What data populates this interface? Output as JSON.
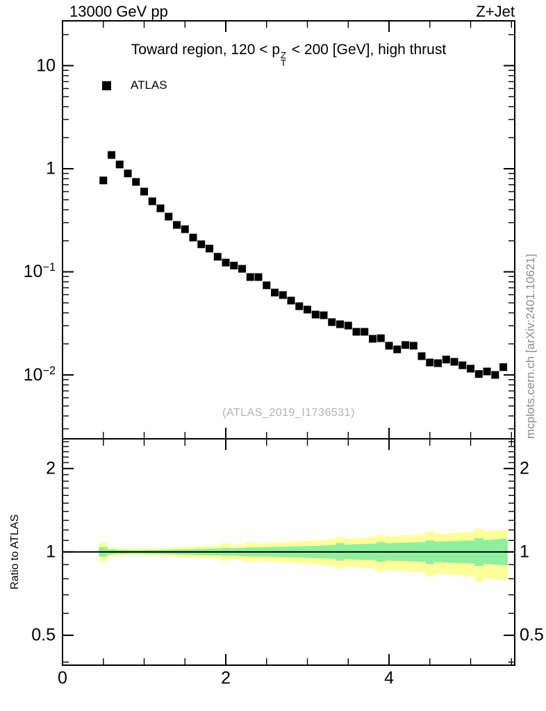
{
  "header": {
    "left": "13000 GeV pp",
    "right": "Z+Jet"
  },
  "main_panel": {
    "title": {
      "prefix": "Toward region, 120 < ",
      "symbol": "p",
      "sup": "Z",
      "sub": "T",
      "suffix": " < 200 [GeV], high thrust"
    },
    "legend": [
      {
        "label": "ATLAS",
        "marker": "filled-square",
        "color": "#000000"
      }
    ],
    "watermark": "(ATLAS_2019_I1736531)"
  },
  "side_caption": "mcplots.cern.ch [arXiv:2401.10621]",
  "chart_data": [
    {
      "id": "main",
      "type": "scatter",
      "title": "Toward region, 120 < pT(Z) < 200 [GeV], high thrust",
      "xlabel": "",
      "ylabel": "",
      "xscale": "linear",
      "yscale": "log",
      "xlim": [
        0,
        5.54
      ],
      "ylim": [
        0.0024,
        27.2
      ],
      "grid": false,
      "legend_position": "top-left-inside",
      "xticks": {
        "values": [
          0,
          2,
          4
        ],
        "labels": [
          "0",
          "2",
          "4"
        ],
        "minor_step": 0.5,
        "minor_max": 5.5
      },
      "ytick_labels": [
        {
          "v": 10,
          "base": "10",
          "exp": ""
        },
        {
          "v": 1,
          "base": "1",
          "exp": ""
        },
        {
          "v": 0.1,
          "base": "10",
          "exp": "−1"
        },
        {
          "v": 0.01,
          "base": "10",
          "exp": "−2"
        }
      ],
      "series": [
        {
          "name": "ATLAS",
          "marker": "filled-square",
          "color": "#000000",
          "x": [
            0.5,
            0.6,
            0.7,
            0.8,
            0.9,
            1.0,
            1.1,
            1.2,
            1.3,
            1.4,
            1.5,
            1.6,
            1.7,
            1.8,
            1.9,
            2.0,
            2.1,
            2.2,
            2.3,
            2.4,
            2.5,
            2.6,
            2.7,
            2.8,
            2.9,
            3.0,
            3.1,
            3.2,
            3.3,
            3.4,
            3.5,
            3.6,
            3.7,
            3.8,
            3.9,
            4.0,
            4.1,
            4.2,
            4.3,
            4.4,
            4.5,
            4.6,
            4.7,
            4.8,
            4.9,
            5.0,
            5.1,
            5.2,
            5.3,
            5.4
          ],
          "y": [
            0.77,
            1.36,
            1.1,
            0.9,
            0.745,
            0.6,
            0.483,
            0.413,
            0.343,
            0.285,
            0.259,
            0.215,
            0.185,
            0.168,
            0.14,
            0.123,
            0.115,
            0.107,
            0.089,
            0.089,
            0.074,
            0.063,
            0.0595,
            0.0526,
            0.0464,
            0.043,
            0.0385,
            0.0379,
            0.0325,
            0.031,
            0.0301,
            0.0262,
            0.0262,
            0.0224,
            0.0227,
            0.0192,
            0.0177,
            0.0195,
            0.0192,
            0.0152,
            0.0132,
            0.013,
            0.0141,
            0.0134,
            0.0124,
            0.0115,
            0.0102,
            0.0108,
            0.01,
            0.0119
          ]
        }
      ]
    },
    {
      "id": "ratio",
      "type": "band",
      "ylabel": "Ratio to ATLAS",
      "xscale": "linear",
      "yscale": "log",
      "xlim": [
        0,
        5.54
      ],
      "ylim": [
        0.39,
        2.56
      ],
      "reference_line": 1,
      "yticks": {
        "values": [
          2,
          1,
          0.5
        ],
        "labels": [
          "2",
          "1",
          "0.5"
        ],
        "minors": [
          0.4,
          0.6,
          0.7,
          0.8,
          0.9,
          1.1,
          1.2,
          1.3,
          1.4,
          1.5,
          1.6,
          1.7,
          1.8,
          1.9,
          2.1,
          2.2,
          2.3,
          2.4,
          2.5
        ]
      },
      "colors": {
        "inner": "#8ef09e",
        "outer": "#ffff99"
      },
      "bin_width": 0.1,
      "x": [
        0.5,
        0.6,
        0.7,
        0.8,
        0.9,
        1.0,
        1.1,
        1.2,
        1.3,
        1.4,
        1.5,
        1.6,
        1.7,
        1.8,
        1.9,
        2.0,
        2.1,
        2.2,
        2.3,
        2.4,
        2.5,
        2.6,
        2.7,
        2.8,
        2.9,
        3.0,
        3.1,
        3.2,
        3.3,
        3.4,
        3.5,
        3.6,
        3.7,
        3.8,
        3.9,
        4.0,
        4.1,
        4.2,
        4.3,
        4.4,
        4.5,
        4.6,
        4.7,
        4.8,
        4.9,
        5.0,
        5.1,
        5.2,
        5.3,
        5.4
      ],
      "inner_hi": [
        1.04,
        1.022,
        1.018,
        1.016,
        1.015,
        1.016,
        1.017,
        1.018,
        1.019,
        1.021,
        1.022,
        1.024,
        1.026,
        1.028,
        1.03,
        1.034,
        1.032,
        1.034,
        1.038,
        1.038,
        1.04,
        1.042,
        1.044,
        1.046,
        1.048,
        1.05,
        1.052,
        1.055,
        1.058,
        1.075,
        1.062,
        1.065,
        1.068,
        1.07,
        1.085,
        1.075,
        1.078,
        1.08,
        1.082,
        1.085,
        1.1,
        1.09,
        1.092,
        1.095,
        1.098,
        1.1,
        1.12,
        1.105,
        1.11,
        1.115
      ],
      "inner_lo": [
        0.962,
        0.98,
        0.984,
        0.985,
        0.986,
        0.985,
        0.984,
        0.983,
        0.982,
        0.98,
        0.978,
        0.977,
        0.975,
        0.973,
        0.971,
        0.968,
        0.969,
        0.967,
        0.963,
        0.964,
        0.962,
        0.96,
        0.958,
        0.956,
        0.954,
        0.952,
        0.95,
        0.948,
        0.945,
        0.93,
        0.941,
        0.938,
        0.936,
        0.934,
        0.92,
        0.93,
        0.928,
        0.926,
        0.924,
        0.922,
        0.905,
        0.918,
        0.915,
        0.912,
        0.91,
        0.908,
        0.89,
        0.903,
        0.9,
        0.895
      ],
      "outer_hi": [
        1.078,
        1.04,
        1.032,
        1.028,
        1.026,
        1.028,
        1.03,
        1.032,
        1.035,
        1.038,
        1.042,
        1.045,
        1.048,
        1.052,
        1.056,
        1.075,
        1.06,
        1.064,
        1.085,
        1.072,
        1.076,
        1.08,
        1.084,
        1.088,
        1.092,
        1.096,
        1.1,
        1.105,
        1.11,
        1.13,
        1.115,
        1.12,
        1.125,
        1.13,
        1.15,
        1.135,
        1.14,
        1.145,
        1.148,
        1.152,
        1.185,
        1.16,
        1.165,
        1.17,
        1.175,
        1.18,
        1.21,
        1.19,
        1.195,
        1.2
      ],
      "outer_lo": [
        0.925,
        0.96,
        0.968,
        0.972,
        0.974,
        0.972,
        0.97,
        0.968,
        0.964,
        0.96,
        0.957,
        0.953,
        0.95,
        0.946,
        0.942,
        0.93,
        0.938,
        0.934,
        0.918,
        0.928,
        0.924,
        0.92,
        0.916,
        0.912,
        0.908,
        0.904,
        0.9,
        0.895,
        0.89,
        0.87,
        0.885,
        0.88,
        0.875,
        0.87,
        0.85,
        0.862,
        0.858,
        0.852,
        0.848,
        0.843,
        0.815,
        0.835,
        0.83,
        0.825,
        0.82,
        0.815,
        0.78,
        0.8,
        0.795,
        0.79
      ]
    }
  ]
}
